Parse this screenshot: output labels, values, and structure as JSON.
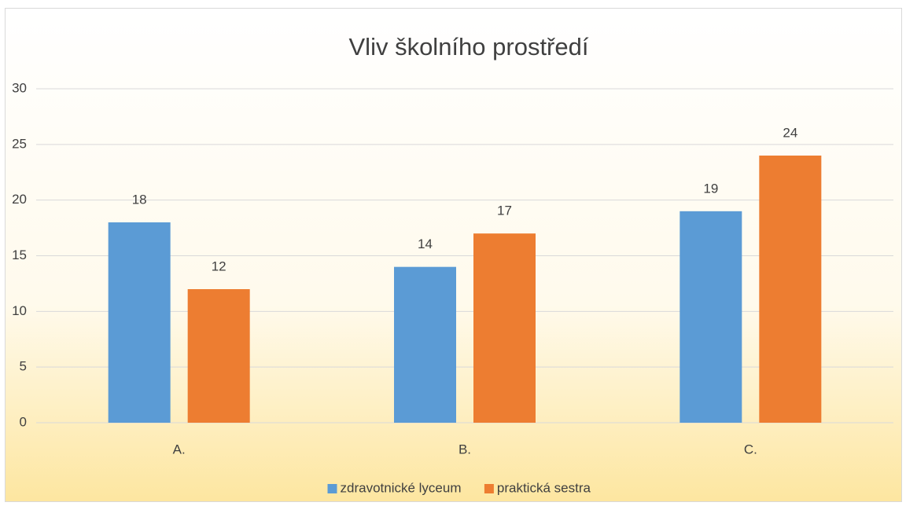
{
  "chart_data": {
    "type": "bar",
    "title": "Vliv školního prostředí",
    "categories": [
      "A.",
      "B.",
      "C."
    ],
    "series": [
      {
        "name": "zdravotnické lyceum",
        "color": "#5b9bd5",
        "values": [
          18,
          14,
          19
        ]
      },
      {
        "name": "praktická sestra",
        "color": "#ed7d31",
        "values": [
          12,
          17,
          24
        ]
      }
    ],
    "ylim": [
      0,
      30
    ],
    "yticks": [
      0,
      5,
      10,
      15,
      20,
      25,
      30
    ],
    "grid": true,
    "legend": "bottom"
  }
}
